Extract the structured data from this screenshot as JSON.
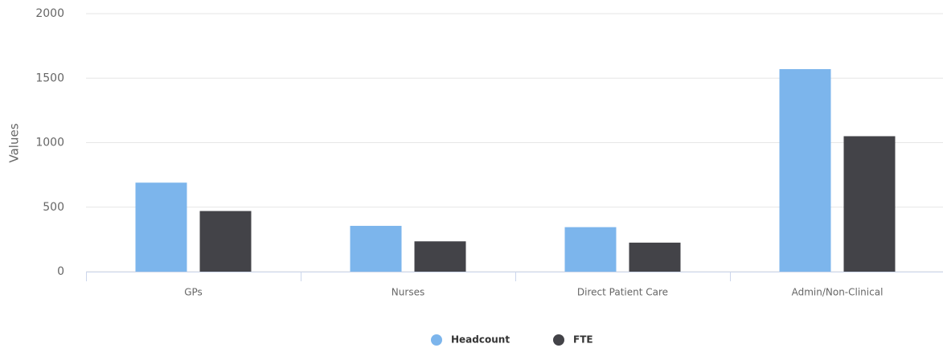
{
  "chart_data": {
    "type": "bar",
    "y_axis_label": "Values",
    "categories": [
      "GPs",
      "Nurses",
      "Direct Patient Care",
      "Admin/Non-Clinical"
    ],
    "series": [
      {
        "name": "Headcount",
        "color": "#7cb5ec",
        "values": [
          690,
          355,
          345,
          1570
        ]
      },
      {
        "name": "FTE",
        "color": "#434348",
        "values": [
          470,
          235,
          225,
          1050
        ]
      }
    ],
    "ylim": [
      0,
      2000
    ],
    "yticks": [
      0,
      500,
      1000,
      1500,
      2000
    ],
    "grid": true,
    "legend": "bottom"
  }
}
